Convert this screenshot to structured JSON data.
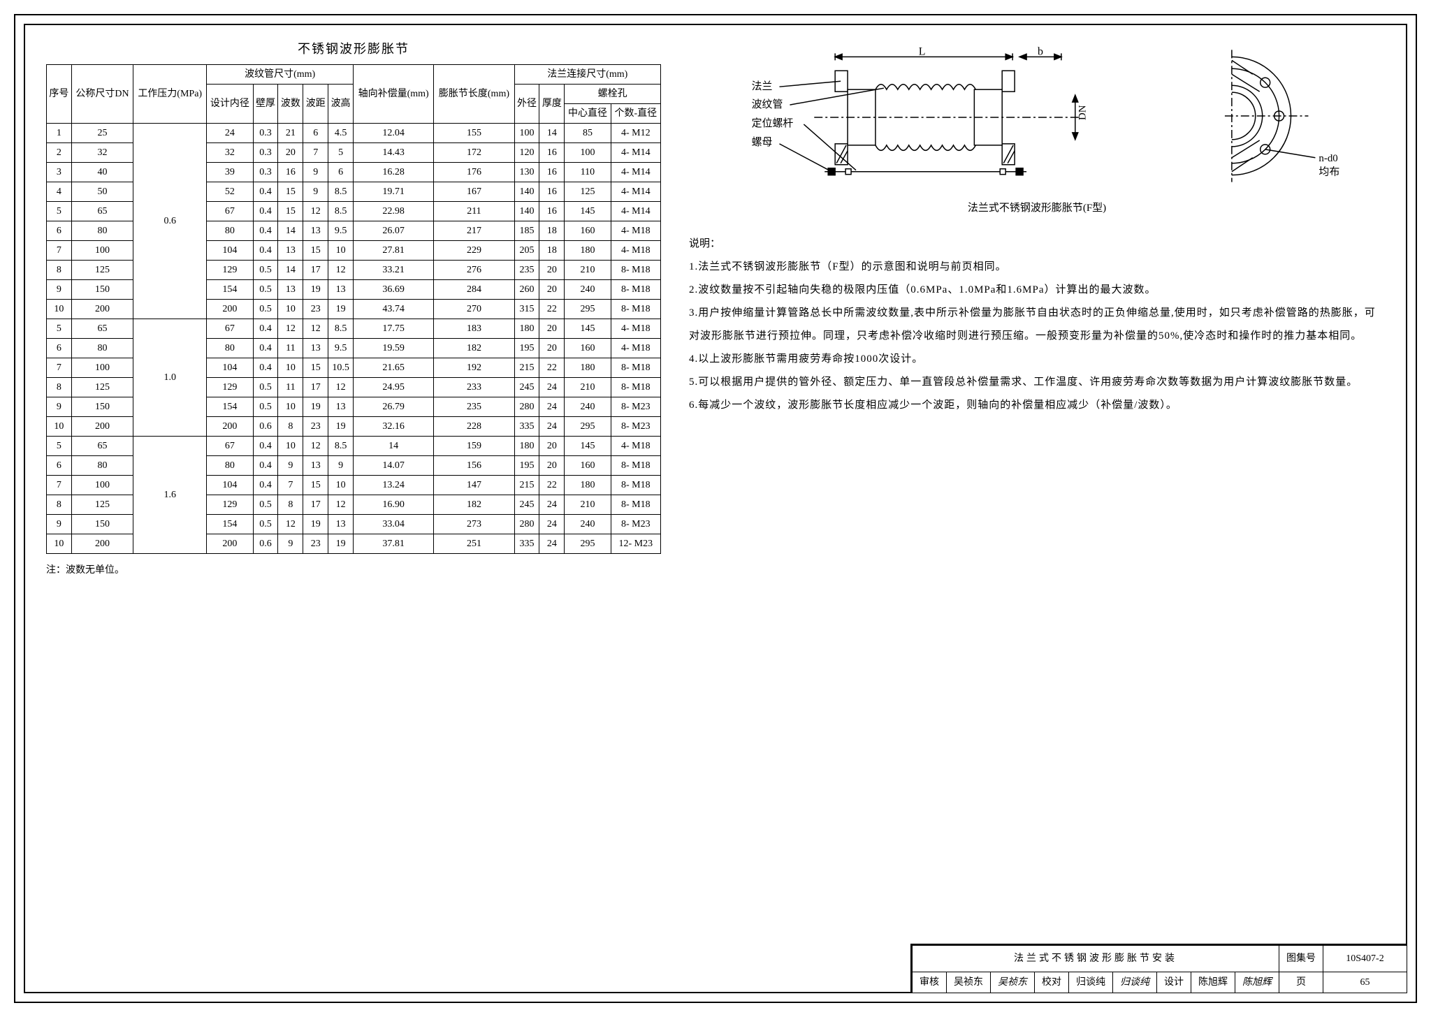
{
  "table_title": "不锈钢波形膨胀节",
  "headers": {
    "seq": "序号",
    "dn": "公称尺寸DN",
    "pressure": "工作压力(MPa)",
    "bellows": "波纹管尺寸(mm)",
    "inner_dia": "设计内径",
    "wall": "壁厚",
    "wave_count": "波数",
    "wave_pitch": "波距",
    "wave_height": "波高",
    "axial": "轴向补偿量(mm)",
    "length": "膨胀节长度(mm)",
    "flange": "法兰连接尺寸(mm)",
    "outer_dia": "外径",
    "thickness": "厚度",
    "bolt": "螺栓孔",
    "bolt_center": "中心直径",
    "bolt_spec": "个数-直径"
  },
  "groups": [
    {
      "pressure": "0.6",
      "rows": [
        [
          "1",
          "25",
          "24",
          "0.3",
          "21",
          "6",
          "4.5",
          "12.04",
          "155",
          "100",
          "14",
          "85",
          "4- M12"
        ],
        [
          "2",
          "32",
          "32",
          "0.3",
          "20",
          "7",
          "5",
          "14.43",
          "172",
          "120",
          "16",
          "100",
          "4- M14"
        ],
        [
          "3",
          "40",
          "39",
          "0.3",
          "16",
          "9",
          "6",
          "16.28",
          "176",
          "130",
          "16",
          "110",
          "4- M14"
        ],
        [
          "4",
          "50",
          "52",
          "0.4",
          "15",
          "9",
          "8.5",
          "19.71",
          "167",
          "140",
          "16",
          "125",
          "4- M14"
        ],
        [
          "5",
          "65",
          "67",
          "0.4",
          "15",
          "12",
          "8.5",
          "22.98",
          "211",
          "140",
          "16",
          "145",
          "4- M14"
        ],
        [
          "6",
          "80",
          "80",
          "0.4",
          "14",
          "13",
          "9.5",
          "26.07",
          "217",
          "185",
          "18",
          "160",
          "4- M18"
        ],
        [
          "7",
          "100",
          "104",
          "0.4",
          "13",
          "15",
          "10",
          "27.81",
          "229",
          "205",
          "18",
          "180",
          "4- M18"
        ],
        [
          "8",
          "125",
          "129",
          "0.5",
          "14",
          "17",
          "12",
          "33.21",
          "276",
          "235",
          "20",
          "210",
          "8- M18"
        ],
        [
          "9",
          "150",
          "154",
          "0.5",
          "13",
          "19",
          "13",
          "36.69",
          "284",
          "260",
          "20",
          "240",
          "8- M18"
        ],
        [
          "10",
          "200",
          "200",
          "0.5",
          "10",
          "23",
          "19",
          "43.74",
          "270",
          "315",
          "22",
          "295",
          "8- M18"
        ]
      ]
    },
    {
      "pressure": "1.0",
      "rows": [
        [
          "5",
          "65",
          "67",
          "0.4",
          "12",
          "12",
          "8.5",
          "17.75",
          "183",
          "180",
          "20",
          "145",
          "4- M18"
        ],
        [
          "6",
          "80",
          "80",
          "0.4",
          "11",
          "13",
          "9.5",
          "19.59",
          "182",
          "195",
          "20",
          "160",
          "4- M18"
        ],
        [
          "7",
          "100",
          "104",
          "0.4",
          "10",
          "15",
          "10.5",
          "21.65",
          "192",
          "215",
          "22",
          "180",
          "8- M18"
        ],
        [
          "8",
          "125",
          "129",
          "0.5",
          "11",
          "17",
          "12",
          "24.95",
          "233",
          "245",
          "24",
          "210",
          "8- M18"
        ],
        [
          "9",
          "150",
          "154",
          "0.5",
          "10",
          "19",
          "13",
          "26.79",
          "235",
          "280",
          "24",
          "240",
          "8- M23"
        ],
        [
          "10",
          "200",
          "200",
          "0.6",
          "8",
          "23",
          "19",
          "32.16",
          "228",
          "335",
          "24",
          "295",
          "8- M23"
        ]
      ]
    },
    {
      "pressure": "1.6",
      "rows": [
        [
          "5",
          "65",
          "67",
          "0.4",
          "10",
          "12",
          "8.5",
          "14",
          "159",
          "180",
          "20",
          "145",
          "4- M18"
        ],
        [
          "6",
          "80",
          "80",
          "0.4",
          "9",
          "13",
          "9",
          "14.07",
          "156",
          "195",
          "20",
          "160",
          "8- M18"
        ],
        [
          "7",
          "100",
          "104",
          "0.4",
          "7",
          "15",
          "10",
          "13.24",
          "147",
          "215",
          "22",
          "180",
          "8- M18"
        ],
        [
          "8",
          "125",
          "129",
          "0.5",
          "8",
          "17",
          "12",
          "16.90",
          "182",
          "245",
          "24",
          "210",
          "8- M18"
        ],
        [
          "9",
          "150",
          "154",
          "0.5",
          "12",
          "19",
          "13",
          "33.04",
          "273",
          "280",
          "24",
          "240",
          "8- M23"
        ],
        [
          "10",
          "200",
          "200",
          "0.6",
          "9",
          "23",
          "19",
          "37.81",
          "251",
          "335",
          "24",
          "295",
          "12- M23"
        ]
      ]
    }
  ],
  "footnote": "注：波数无单位。",
  "diagram_labels": {
    "flange": "法兰",
    "bellows": "波纹管",
    "rod": "定位螺杆",
    "nut": "螺母",
    "L": "L",
    "b": "b",
    "DN": "DN",
    "nd0": "n-d0",
    "uniform": "均布"
  },
  "diagram_caption": "法兰式不锈钢波形膨胀节(F型)",
  "notes_title": "说明：",
  "notes": [
    "1.法兰式不锈钢波形膨胀节（F型）的示意图和说明与前页相同。",
    "2.波纹数量按不引起轴向失稳的极限内压值（0.6MPa、1.0MPa和1.6MPa）计算出的最大波数。",
    "3.用户按伸缩量计算管路总长中所需波纹数量,表中所示补偿量为膨胀节自由状态时的正负伸缩总量,使用时，如只考虑补偿管路的热膨胀，可对波形膨胀节进行预拉伸。同理，只考虑补偿冷收缩时则进行预压缩。一般预变形量为补偿量的50%,使冷态时和操作时的推力基本相同。",
    "4.以上波形膨胀节需用疲劳寿命按1000次设计。",
    "5.可以根据用户提供的管外径、额定压力、单一直管段总补偿量需求、工作温度、许用疲劳寿命次数等数据为用户计算波纹膨胀节数量。",
    "6.每减少一个波纹，波形膨胀节长度相应减少一个波距，则轴向的补偿量相应减少（补偿量/波数）。"
  ],
  "titleblock": {
    "main_title": "法兰式不锈钢波形膨胀节安装",
    "atlas_label": "图集号",
    "atlas_no": "10S407-2",
    "review_label": "审核",
    "review_name": "吴祯东",
    "review_sig": "吴祯东",
    "check_label": "校对",
    "check_name": "归谈纯",
    "check_sig": "归谈纯",
    "design_label": "设计",
    "design_name": "陈旭辉",
    "design_sig": "陈旭辉",
    "page_label": "页",
    "page_no": "65"
  }
}
